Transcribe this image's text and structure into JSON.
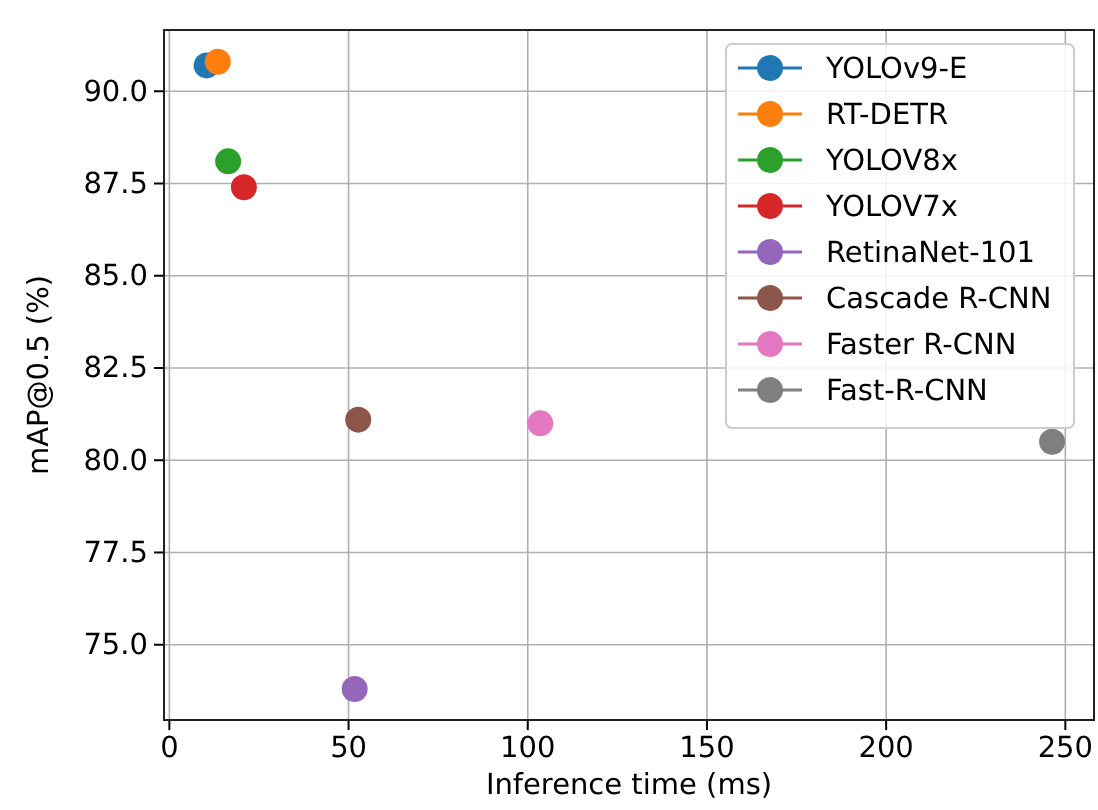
{
  "chart_data": {
    "type": "scatter",
    "xlabel": "Inference time (ms)",
    "ylabel": "mAP@0.5 (%)",
    "xlim": [
      -1.5,
      258
    ],
    "xticks": [
      0,
      50,
      100,
      150,
      200,
      250
    ],
    "ylim": [
      72.96,
      91.66
    ],
    "yticks": [
      {
        "value": 75,
        "label": "75.0"
      },
      {
        "value": 77.5,
        "label": "77.5"
      },
      {
        "value": 80,
        "label": "80.0"
      },
      {
        "value": 82.5,
        "label": "82.5"
      },
      {
        "value": 85,
        "label": "85.0"
      },
      {
        "value": 87.5,
        "label": "87.5"
      },
      {
        "value": 90,
        "label": "90.0"
      }
    ],
    "grid": true,
    "legend": "top right",
    "marker": "circle",
    "series": [
      {
        "name": "YOLOv9-E",
        "color": "#1f77b4",
        "x": [
          10.4
        ],
        "values": [
          90.7
        ]
      },
      {
        "name": "RT-DETR",
        "color": "#ff7f0e",
        "x": [
          13.5
        ],
        "values": [
          90.8
        ]
      },
      {
        "name": "YOLOV8x",
        "color": "#2ca02c",
        "x": [
          16.4
        ],
        "values": [
          88.1
        ]
      },
      {
        "name": "YOLOV7x",
        "color": "#d62728",
        "x": [
          20.8
        ],
        "values": [
          87.4
        ]
      },
      {
        "name": "RetinaNet-101",
        "color": "#9467bd",
        "x": [
          51.7
        ],
        "values": [
          73.8
        ]
      },
      {
        "name": "Cascade R-CNN",
        "color": "#8c564b",
        "x": [
          52.7
        ],
        "values": [
          81.1
        ]
      },
      {
        "name": "Faster R-CNN",
        "color": "#e377c2",
        "x": [
          103.5
        ],
        "values": [
          81.0
        ]
      },
      {
        "name": "Fast-R-CNN",
        "color": "#7f7f7f",
        "x": [
          246.3
        ],
        "values": [
          80.5
        ]
      }
    ]
  }
}
